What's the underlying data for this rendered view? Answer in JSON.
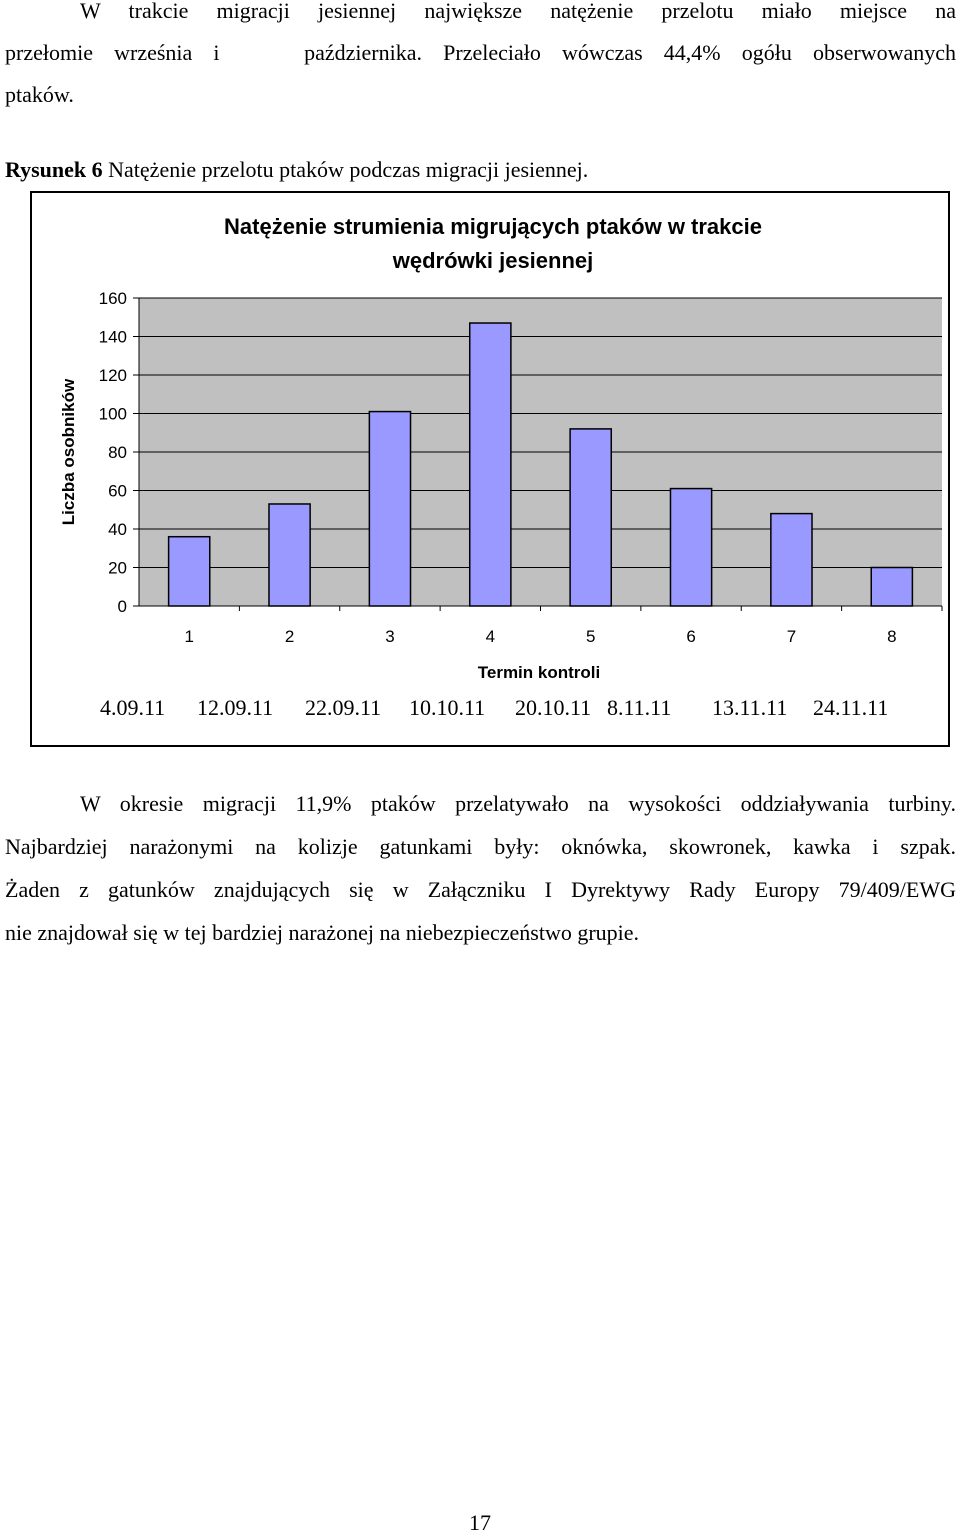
{
  "intro": {
    "lines": [
      "W trakcie migracji jesiennej największe natężenie przelotu miało miejsce na",
      "przełomie września i    października. Przeleciało wówczas 44,4% ogółu obserwowanych",
      "ptaków."
    ]
  },
  "figure": {
    "label": "Rysunek 6",
    "caption": "Natężenie przelotu ptaków podczas migracji jesiennej."
  },
  "chart_data": {
    "type": "bar",
    "title": "Natężenie strumienia migrujących ptaków w trakcie wędrówki jesiennej",
    "title_lines": [
      "Natężenie strumienia migrujących ptaków w trakcie",
      "wędrówki jesiennej"
    ],
    "xlabel": "Termin kontroli",
    "ylabel": "Liczba osobników",
    "categories": [
      "1",
      "2",
      "3",
      "4",
      "5",
      "6",
      "7",
      "8"
    ],
    "dates": [
      "4.09.11",
      "12.09.11",
      "22.09.11",
      "10.10.11",
      "20.10.11",
      "8.11.11",
      "13.11.11",
      "24.11.11"
    ],
    "values": [
      36,
      53,
      101,
      147,
      92,
      61,
      48,
      20
    ],
    "ylim": [
      0,
      160
    ],
    "yticks": [
      0,
      20,
      40,
      60,
      80,
      100,
      120,
      140,
      160
    ],
    "grid": true,
    "colors": {
      "bar": "#9999ff",
      "plot_bg": "#c0c0c0",
      "bar_border": "#000000"
    }
  },
  "body_text": {
    "lines": [
      "W okresie migracji 11,9% ptaków przelatywało na wysokości oddziaływania turbiny.",
      "Najbardziej narażonymi na kolizje gatunkami były: oknówka, skowronek, kawka i szpak.",
      "Żaden z gatunków znajdujących się w Załączniku I Dyrektywy Rady Europy 79/409/EWG",
      "nie znajdował się w tej bardziej narażonej na niebezpieczeństwo grupie."
    ]
  },
  "page_number": "17"
}
